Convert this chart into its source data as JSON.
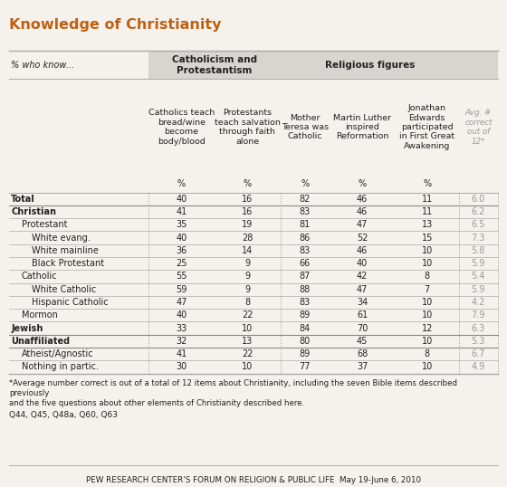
{
  "title": "Knowledge of Christianity",
  "col_headers": [
    "Catholics teach\nbread/wine\nbecome\nbody/blood",
    "Protestants\nteach salvation\nthrough faith\nalone",
    "Mother\nTeresa was\nCatholic",
    "Martin Luther\ninspired\nReformation",
    "Jonathan\nEdwards\nparticipated\nin First Great\nAwakening",
    "Avg. #\ncorrect\nout of\n12*"
  ],
  "rows": [
    [
      "Total",
      40,
      16,
      82,
      46,
      11,
      "6.0"
    ],
    [
      "Christian",
      41,
      16,
      83,
      46,
      11,
      "6.2"
    ],
    [
      "  Protestant",
      35,
      19,
      81,
      47,
      13,
      "6.5"
    ],
    [
      "    White evang.",
      40,
      28,
      86,
      52,
      15,
      "7.3"
    ],
    [
      "    White mainline",
      36,
      14,
      83,
      46,
      10,
      "5.8"
    ],
    [
      "    Black Protestant",
      25,
      9,
      66,
      40,
      10,
      "5.9"
    ],
    [
      "  Catholic",
      55,
      9,
      87,
      42,
      8,
      "5.4"
    ],
    [
      "    White Catholic",
      59,
      9,
      88,
      47,
      7,
      "5.9"
    ],
    [
      "    Hispanic Catholic",
      47,
      8,
      83,
      34,
      10,
      "4.2"
    ],
    [
      "  Mormon",
      40,
      22,
      89,
      61,
      10,
      "7.9"
    ],
    [
      "Jewish",
      33,
      10,
      84,
      70,
      12,
      "6.3"
    ],
    [
      "Unaffiliated",
      32,
      13,
      80,
      45,
      10,
      "5.3"
    ],
    [
      "  Atheist/Agnostic",
      41,
      22,
      89,
      68,
      8,
      "6.7"
    ],
    [
      "  Nothing in partic.",
      30,
      10,
      77,
      37,
      10,
      "4.9"
    ]
  ],
  "footnote1": "*Average number correct is out of a total of 12 items about Christianity, including the seven Bible items described",
  "footnote2": "previously",
  "footnote3": "and the five questions about other elements of Christianity described here.",
  "footnote4": "Q44, Q45, Q48a, Q60, Q63",
  "footer": "PEW RESEARCH CENTER'S FORUM ON RELIGION & PUBLIC LIFE  May 19-June 6, 2010",
  "bg_color": "#f5f2ed",
  "grp_header_bg": "#d8d5d0",
  "title_color": "#c06010",
  "text_color": "#222222",
  "gray_text": "#999999",
  "line_color": "#aaaaaa",
  "dotted_color": "#999999"
}
